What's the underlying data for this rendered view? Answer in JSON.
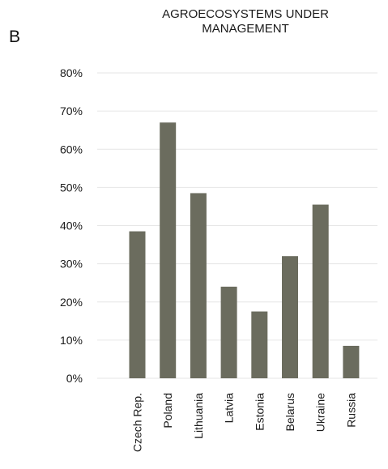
{
  "panel_label": "B",
  "chart_data": {
    "type": "bar",
    "title_lines": [
      "AGROECOSYSTEMS UNDER",
      "MANAGEMENT"
    ],
    "categories": [
      "Czech Rep.",
      "Poland",
      "Lithuania",
      "Latvia",
      "Estonia",
      "Belarus",
      "Ukraine",
      "Russia"
    ],
    "values": [
      38.5,
      67,
      48.5,
      24,
      17.5,
      32,
      45.5,
      8.5
    ],
    "y_ticks": [
      "0%",
      "10%",
      "20%",
      "30%",
      "40%",
      "50%",
      "60%",
      "70%",
      "80%"
    ],
    "ylim": [
      0,
      80
    ],
    "y_unit": "%",
    "grid": true,
    "xlabel": "",
    "ylabel": "",
    "colors": {
      "bar": "#6b6c5e",
      "grid": "#e6e6e6",
      "text": "#1a1a1a"
    }
  }
}
